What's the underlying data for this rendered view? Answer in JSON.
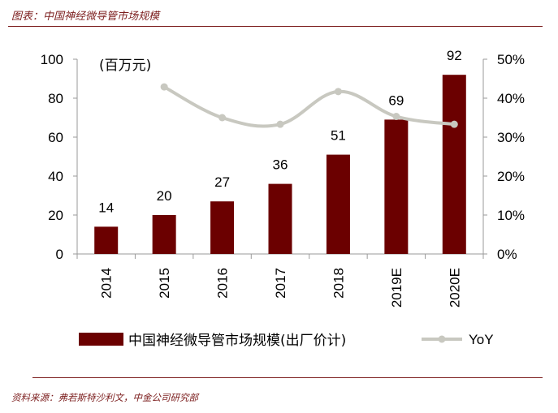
{
  "header": {
    "title": "图表：中国神经微导管市场规模"
  },
  "footer": {
    "source": "资料来源：弗若斯特沙利文，中金公司研究部"
  },
  "colors": {
    "bar": "#6b0000",
    "line": "#c8c8c0",
    "rule": "#7b1c1c"
  },
  "chart_data": {
    "type": "bar",
    "categories": [
      "2014",
      "2015",
      "2016",
      "2017",
      "2018",
      "2019E",
      "2020E"
    ],
    "unit_label": "(百万元)",
    "series": [
      {
        "name": "中国神经微导管市场规模(出厂价计)",
        "type": "bar",
        "axis": "left",
        "values": [
          14,
          20,
          27,
          36,
          51,
          69,
          92
        ],
        "data_labels": [
          "14",
          "20",
          "27",
          "36",
          "51",
          "69",
          "92"
        ]
      },
      {
        "name": "YoY",
        "type": "line",
        "axis": "right",
        "values": [
          null,
          42.9,
          35.0,
          33.3,
          41.7,
          35.3,
          33.3
        ]
      }
    ],
    "y_left": {
      "ylim": [
        0,
        100
      ],
      "ticks": [
        0,
        20,
        40,
        60,
        80,
        100
      ],
      "tick_labels": [
        "0",
        "20",
        "40",
        "60",
        "80",
        "100"
      ]
    },
    "y_right": {
      "ylim": [
        0,
        50
      ],
      "ticks": [
        0,
        10,
        20,
        30,
        40,
        50
      ],
      "tick_labels": [
        "0%",
        "10%",
        "20%",
        "30%",
        "40%",
        "50%"
      ]
    },
    "legend": {
      "position": "bottom"
    }
  }
}
